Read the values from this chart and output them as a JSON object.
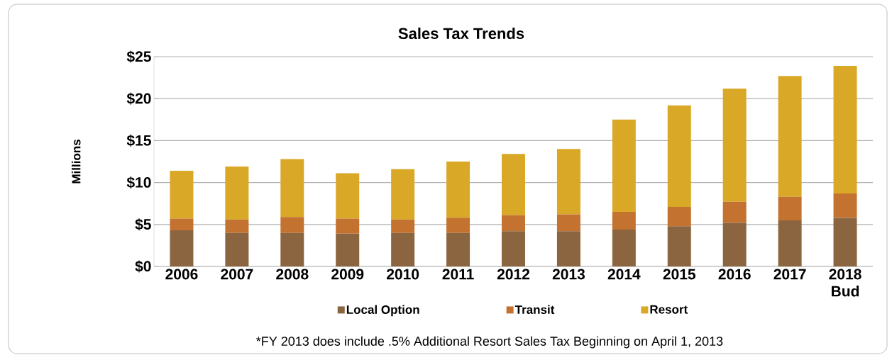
{
  "chart_data": {
    "type": "bar",
    "title": "Sales Tax Trends",
    "ylabel": "Millions",
    "stacked": true,
    "categories": [
      "2006",
      "2007",
      "2008",
      "2009",
      "2010",
      "2011",
      "2012",
      "2013",
      "2014",
      "2015",
      "2016",
      "2017",
      "2018 Bud"
    ],
    "series": [
      {
        "name": "Local Option",
        "color": "#8a6540",
        "values": [
          4.3,
          4.0,
          4.0,
          3.9,
          4.0,
          4.0,
          4.2,
          4.2,
          4.4,
          4.8,
          5.2,
          5.5,
          5.8
        ]
      },
      {
        "name": "Transit",
        "color": "#c47230",
        "values": [
          1.4,
          1.6,
          1.9,
          1.8,
          1.6,
          1.8,
          1.9,
          2.0,
          2.1,
          2.3,
          2.5,
          2.8,
          2.9
        ]
      },
      {
        "name": "Resort",
        "color": "#d9a826",
        "values": [
          5.7,
          6.3,
          6.9,
          5.4,
          6.0,
          6.7,
          7.3,
          7.8,
          11.0,
          12.1,
          13.5,
          14.4,
          15.2
        ]
      }
    ],
    "ylim": [
      0,
      25
    ],
    "yticks": [
      {
        "value": 0,
        "label": "$0"
      },
      {
        "value": 5,
        "label": "$5"
      },
      {
        "value": 10,
        "label": "$10"
      },
      {
        "value": 15,
        "label": "$15"
      },
      {
        "value": 20,
        "label": "$20"
      },
      {
        "value": 25,
        "label": "$25"
      }
    ],
    "grid": "y",
    "legend": "bottom",
    "annotations": [
      "*FY 2013 does include .5% Additional Resort  Sales Tax Beginning on April 1, 2013"
    ]
  }
}
